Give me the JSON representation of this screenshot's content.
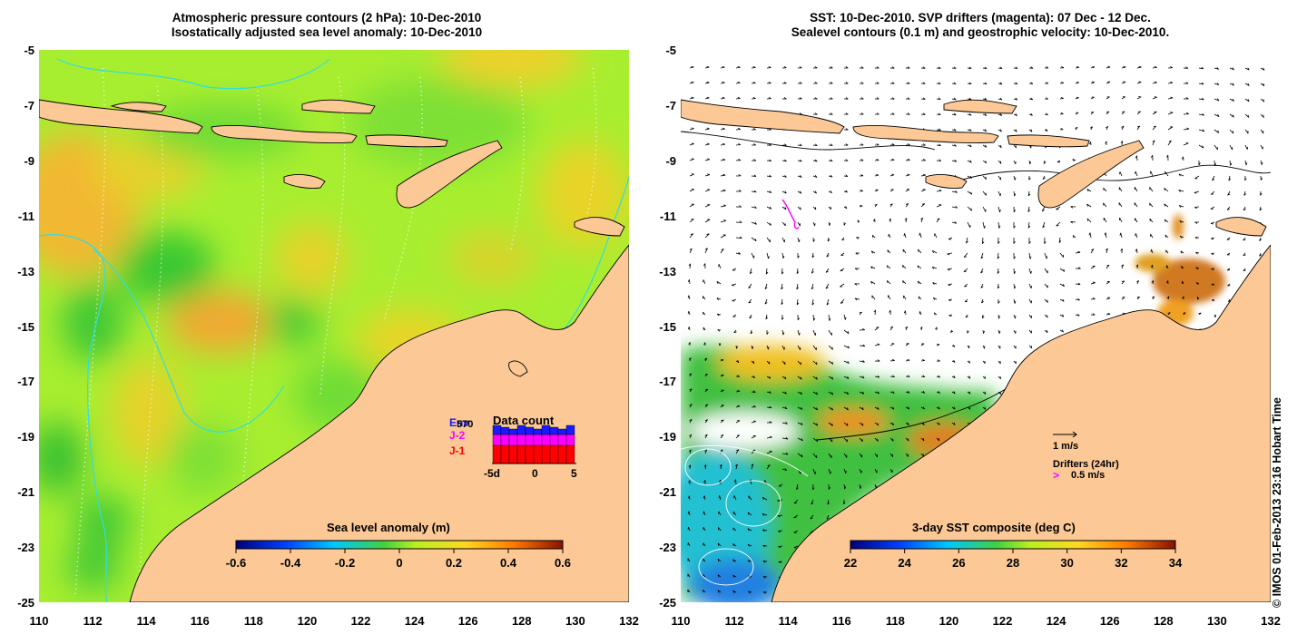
{
  "left_panel": {
    "title_line1": "Atmospheric pressure contours (2 hPa): 10-Dec-2010",
    "title_line2": "Isostatically adjusted sea level anomaly: 10-Dec-2010",
    "colorbar_label": "Sea level anomaly (m)",
    "colorbar_ticks": [
      "-0.6",
      "-0.4",
      "-0.2",
      "0",
      "0.2",
      "0.4",
      "0.6"
    ],
    "data_count": {
      "title": "Data count",
      "legend": [
        "Env",
        "J-2",
        "J-1"
      ],
      "legend_colors": [
        "#1a1aff",
        "#ff00ff",
        "#ff0000"
      ],
      "count_label": "570",
      "axis_ticks": [
        "-5d",
        "0",
        "5"
      ]
    }
  },
  "right_panel": {
    "title_line1": "SST: 10-Dec-2010. SVP drifters (magenta): 07 Dec - 12 Dec.",
    "title_line2": "Sealevel contours (0.1 m) and geostrophic velocity: 10-Dec-2010.",
    "colorbar_label": "3-day SST composite (deg C)",
    "colorbar_ticks": [
      "22",
      "24",
      "26",
      "28",
      "30",
      "32",
      "34"
    ],
    "velocity_scale_label": "1 m/s",
    "drifters_label": "Drifters (24hr)",
    "drifters_scale_symbol": ">",
    "drifters_scale_label": "0.5 m/s"
  },
  "axes": {
    "x_ticks": [
      "110",
      "112",
      "114",
      "116",
      "118",
      "120",
      "122",
      "124",
      "126",
      "128",
      "130",
      "132"
    ],
    "y_ticks": [
      "-5",
      "-7",
      "-9",
      "-11",
      "-13",
      "-15",
      "-17",
      "-19",
      "-21",
      "-23",
      "-25"
    ]
  },
  "credit": "© IMOS 01-Feb-2013 23:16 Hobart Time",
  "colors": {
    "land": "#fbc896",
    "ocean_mid": "#a8ee30",
    "cyan_contour": "#33dddd",
    "drifter": "#ff00ff"
  }
}
